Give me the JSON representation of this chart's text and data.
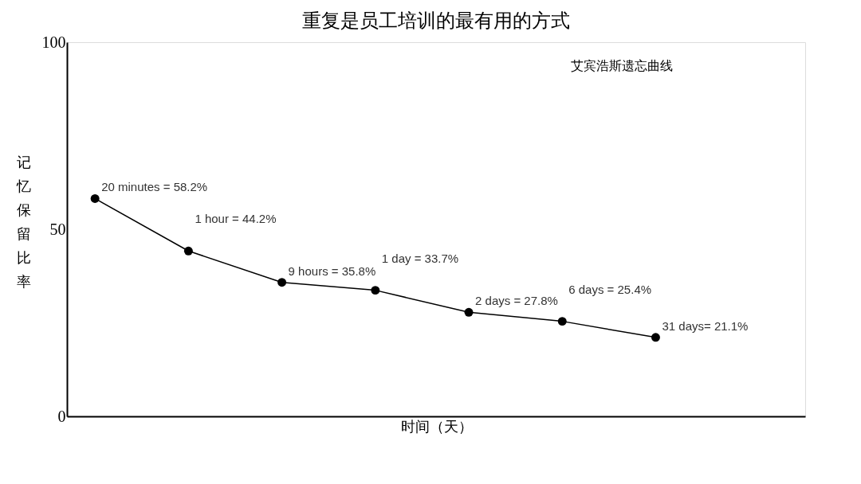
{
  "chart_data": {
    "type": "line",
    "title": "重复是员工培训的最有用的方式",
    "annotations": [
      "艾宾浩斯遗忘曲线"
    ],
    "xlabel": "时间（天）",
    "ylabel": "记忆保留比率",
    "categories": [
      null,
      null,
      null,
      null,
      null,
      null,
      null
    ],
    "series": [
      {
        "color": "#000000",
        "values": [
          58.2,
          44.2,
          35.8,
          33.7,
          27.8,
          25.4,
          21.1
        ],
        "value_labels": [
          "20 minutes = 58.2%",
          "1 hour = 44.2%",
          "9 hours = 35.8%",
          "1 day = 33.7%",
          "2 days = 27.8%",
          "6 days = 25.4%",
          "31 days= 21.1%"
        ]
      }
    ],
    "ylim": [
      0,
      100
    ],
    "yticks": [
      0,
      50,
      100
    ],
    "grid": false,
    "marker": "circle",
    "line_style": "solid",
    "tick_labels": "y"
  }
}
